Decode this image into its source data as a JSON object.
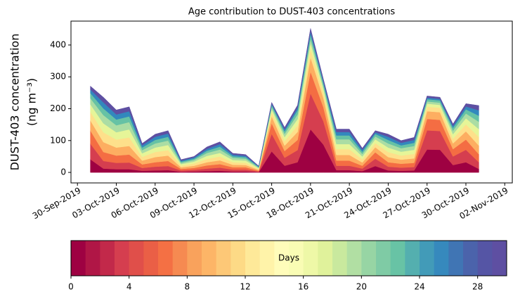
{
  "chart_data": {
    "type": "stacked_area",
    "title": "Age contribution to DUST-403 concentrations",
    "y_label": [
      "DUST-403 concentration",
      "(ng m⁻³)"
    ],
    "x": [
      "2019-10-01",
      "2019-10-02",
      "2019-10-03",
      "2019-10-04",
      "2019-10-05",
      "2019-10-06",
      "2019-10-07",
      "2019-10-08",
      "2019-10-09",
      "2019-10-10",
      "2019-10-11",
      "2019-10-12",
      "2019-10-13",
      "2019-10-14",
      "2019-10-15",
      "2019-10-16",
      "2019-10-17",
      "2019-10-18",
      "2019-10-19",
      "2019-10-20",
      "2019-10-21",
      "2019-10-22",
      "2019-10-23",
      "2019-10-24",
      "2019-10-25",
      "2019-10-26",
      "2019-10-27",
      "2019-10-28",
      "2019-10-29",
      "2019-10-30",
      "2019-10-31"
    ],
    "xlim": [
      "2019-09-29T12:00",
      "2019-11-02T14:00"
    ],
    "xticks": [
      {
        "value": "2019-09-30",
        "label": "30-Sep-2019"
      },
      {
        "value": "2019-10-03",
        "label": "03-Oct-2019"
      },
      {
        "value": "2019-10-06",
        "label": "06-Oct-2019"
      },
      {
        "value": "2019-10-09",
        "label": "09-Oct-2019"
      },
      {
        "value": "2019-10-12",
        "label": "12-Oct-2019"
      },
      {
        "value": "2019-10-15",
        "label": "15-Oct-2019"
      },
      {
        "value": "2019-10-18",
        "label": "18-Oct-2019"
      },
      {
        "value": "2019-10-21",
        "label": "21-Oct-2019"
      },
      {
        "value": "2019-10-24",
        "label": "24-Oct-2019"
      },
      {
        "value": "2019-10-27",
        "label": "27-Oct-2019"
      },
      {
        "value": "2019-10-30",
        "label": "30-Oct-2019"
      },
      {
        "value": "2019-11-02",
        "label": "02-Nov-2019"
      }
    ],
    "ylim": [
      -33,
      475
    ],
    "yticks": [
      0,
      100,
      200,
      300,
      400
    ],
    "series": [
      {
        "color": "#9e0142",
        "values": [
          41,
          12,
          10,
          10,
          5,
          6,
          7,
          2,
          3,
          4,
          5,
          3,
          3,
          1,
          66,
          21,
          32,
          135,
          87,
          7,
          7,
          4,
          20,
          6,
          5,
          6,
          72,
          71,
          23,
          32,
          11
        ]
      },
      {
        "color": "#d53e4f",
        "values": [
          49,
          24,
          20,
          21,
          9,
          12,
          13,
          4,
          5,
          8,
          10,
          6,
          6,
          2,
          55,
          25,
          38,
          113,
          73,
          14,
          14,
          8,
          23,
          12,
          10,
          11,
          60,
          59,
          27,
          39,
          21
        ]
      },
      {
        "color": "#f46d43",
        "values": [
          41,
          28,
          23,
          25,
          11,
          14,
          16,
          5,
          6,
          10,
          11,
          7,
          7,
          2,
          33,
          21,
          32,
          68,
          44,
          16,
          16,
          9,
          20,
          14,
          12,
          13,
          36,
          35,
          23,
          32,
          25
        ]
      },
      {
        "color": "#fdae61",
        "values": [
          32,
          31,
          25,
          27,
          12,
          16,
          17,
          5,
          7,
          10,
          12,
          8,
          7,
          3,
          22,
          17,
          25,
          45,
          29,
          18,
          18,
          10,
          16,
          16,
          13,
          14,
          24,
          24,
          18,
          26,
          27
        ]
      },
      {
        "color": "#fee08b",
        "values": [
          27,
          31,
          25,
          27,
          12,
          16,
          17,
          5,
          7,
          10,
          12,
          8,
          7,
          3,
          13,
          14,
          21,
          27,
          17,
          18,
          18,
          10,
          13,
          16,
          13,
          14,
          14,
          14,
          15,
          22,
          27
        ]
      },
      {
        "color": "#e6f598",
        "values": [
          24,
          28,
          23,
          25,
          11,
          14,
          16,
          5,
          6,
          10,
          11,
          7,
          7,
          2,
          9,
          13,
          19,
          18,
          12,
          16,
          16,
          9,
          12,
          14,
          12,
          13,
          10,
          9,
          14,
          19,
          25
        ]
      },
      {
        "color": "#abdda4",
        "values": [
          19,
          26,
          22,
          23,
          10,
          13,
          14,
          4,
          5,
          9,
          11,
          7,
          6,
          2,
          7,
          10,
          15,
          14,
          9,
          15,
          15,
          8,
          9,
          13,
          11,
          12,
          7,
          7,
          11,
          15,
          23
        ]
      },
      {
        "color": "#66c2a5",
        "values": [
          16,
          21,
          18,
          18,
          8,
          11,
          12,
          4,
          4,
          7,
          9,
          5,
          5,
          2,
          7,
          8,
          13,
          14,
          9,
          12,
          12,
          7,
          8,
          11,
          9,
          10,
          7,
          7,
          9,
          13,
          19
        ]
      },
      {
        "color": "#3288bd",
        "values": [
          11,
          19,
          16,
          16,
          7,
          10,
          10,
          3,
          4,
          6,
          8,
          5,
          4,
          2,
          4,
          6,
          8,
          9,
          6,
          11,
          11,
          6,
          5,
          10,
          8,
          9,
          5,
          5,
          6,
          9,
          17
        ]
      },
      {
        "color": "#5e4fa2",
        "values": [
          11,
          16,
          14,
          14,
          6,
          8,
          9,
          3,
          3,
          6,
          7,
          4,
          4,
          1,
          4,
          6,
          8,
          9,
          6,
          9,
          9,
          5,
          5,
          8,
          7,
          8,
          5,
          5,
          6,
          9,
          15
        ]
      }
    ],
    "colorbar": {
      "label": "Days",
      "lim": [
        0,
        30
      ],
      "ticks": [
        0,
        4,
        8,
        12,
        16,
        20,
        24,
        28
      ],
      "colors": [
        "#9e0142",
        "#b01646",
        "#c2294a",
        "#d53e4f",
        "#e04f4a",
        "#ea5f46",
        "#f47044",
        "#f68a51",
        "#f9a25c",
        "#fdb567",
        "#fdc877",
        "#fdda86",
        "#fee999",
        "#fff3a9",
        "#fffcba",
        "#f9fcb4",
        "#eef8a7",
        "#e0f29b",
        "#c9e99e",
        "#b1dfa3",
        "#97d5a4",
        "#7fcba5",
        "#68c3a5",
        "#54afaf",
        "#429bb8",
        "#3689bd",
        "#4075b4",
        "#4b63ab",
        "#5555a5",
        "#5e4fa2"
      ]
    }
  }
}
